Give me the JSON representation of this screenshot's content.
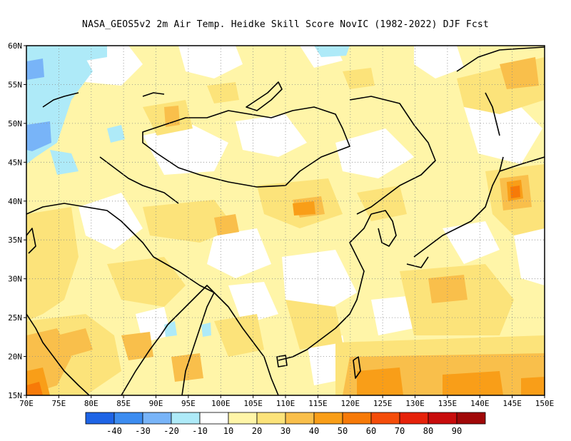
{
  "title": "NASA_GEOS5v2  2m Air Temp. Heidke Skill Score NovIC (1982-2022) DJF Fcst",
  "map": {
    "lon_range": [
      70,
      150
    ],
    "lat_range": [
      15,
      60
    ],
    "lon_ticks": [
      "70E",
      "75E",
      "80E",
      "85E",
      "90E",
      "95E",
      "100E",
      "105E",
      "110E",
      "115E",
      "120E",
      "125E",
      "130E",
      "135E",
      "140E",
      "145E",
      "150E"
    ],
    "lat_ticks": [
      "15N",
      "20N",
      "25N",
      "30N",
      "35N",
      "40N",
      "45N",
      "50N",
      "55N",
      "60N"
    ],
    "grid": true
  },
  "colorbar": {
    "colors": [
      "#1e64e6",
      "#3c8cf0",
      "#78b4f8",
      "#aeeaf8",
      "#ffffff",
      "#fff5a8",
      "#fce37a",
      "#f9bf4b",
      "#f99e18",
      "#f77a08",
      "#f54d0a",
      "#e6220a",
      "#c80c0c",
      "#a00808"
    ],
    "labels": [
      "-40",
      "-30",
      "-20",
      "-10",
      "10",
      "20",
      "30",
      "40",
      "50",
      "60",
      "70",
      "80",
      "90"
    ]
  }
}
